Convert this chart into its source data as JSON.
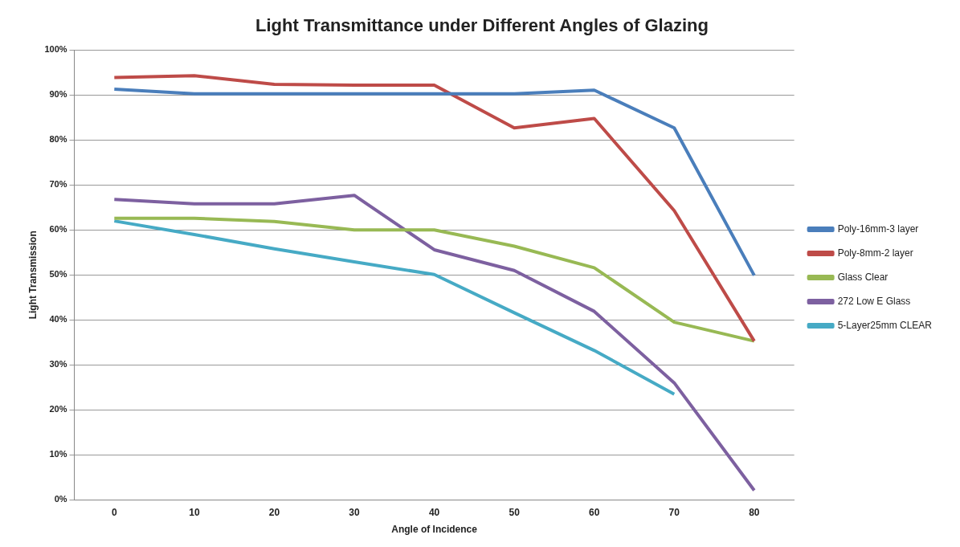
{
  "chart_data": {
    "type": "line",
    "title": "Light Transmittance under Different Angles of Glazing",
    "xlabel": "Angle of Incidence",
    "ylabel": "Light Transmission",
    "categories": [
      "0",
      "10",
      "20",
      "30",
      "40",
      "50",
      "60",
      "70",
      "80"
    ],
    "series": [
      {
        "name": "Poly-16mm-3 layer",
        "color": "#4a7ebb",
        "values": [
          91.3,
          90.3,
          90.3,
          90.3,
          90.3,
          90.3,
          91.1,
          82.7,
          49.9
        ]
      },
      {
        "name": "Poly-8mm-2 layer",
        "color": "#be4b48",
        "values": [
          93.9,
          94.3,
          92.4,
          92.2,
          92.2,
          82.7,
          84.8,
          64.3,
          35.3
        ]
      },
      {
        "name": "Glass Clear",
        "color": "#98b954",
        "values": [
          62.6,
          62.6,
          61.9,
          60,
          60,
          56.4,
          51.6,
          39.5,
          35.3
        ]
      },
      {
        "name": "272 Low E Glass",
        "color": "#7d60a0",
        "values": [
          66.8,
          65.8,
          65.8,
          67.7,
          55.6,
          51,
          41.9,
          26,
          2.1
        ]
      },
      {
        "name": "5-Layer25mm CLEAR",
        "color": "#46aac5",
        "values": [
          62,
          59,
          55.8,
          52.9,
          50.1,
          41.6,
          33.2,
          23.5,
          null
        ]
      }
    ],
    "ylim": [
      0,
      100
    ],
    "yticks": [
      {
        "value": 0,
        "label": "0%"
      },
      {
        "value": 10,
        "label": "10%"
      },
      {
        "value": 20,
        "label": "20%"
      },
      {
        "value": 30,
        "label": "30%"
      },
      {
        "value": 40,
        "label": "40%"
      },
      {
        "value": 50,
        "label": "50%"
      },
      {
        "value": 60,
        "label": "60%"
      },
      {
        "value": 70,
        "label": "70%"
      },
      {
        "value": 80,
        "label": "80%"
      },
      {
        "value": 90,
        "label": "90%"
      },
      {
        "value": 100,
        "label": "100%"
      }
    ],
    "grid": "y",
    "legend": "right",
    "marker": "none",
    "line_style": "solid"
  }
}
